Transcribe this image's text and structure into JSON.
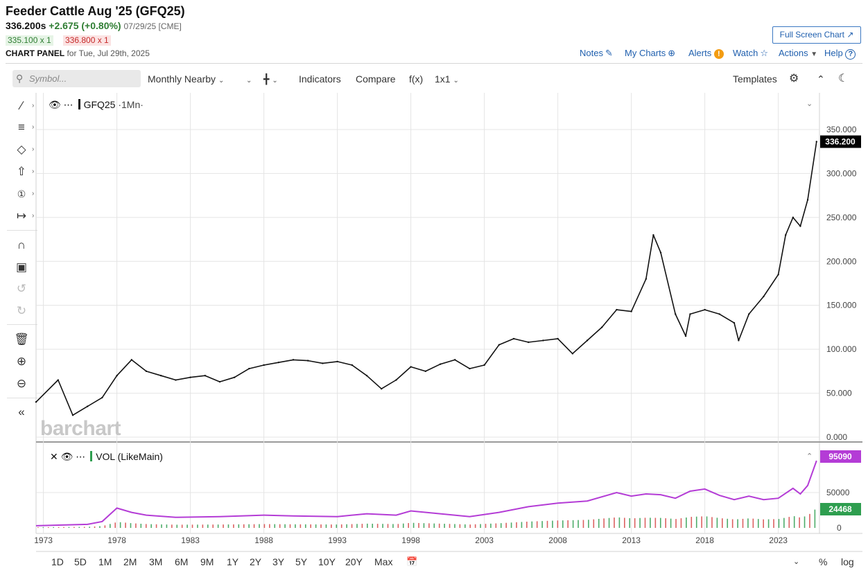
{
  "header": {
    "title": "Feeder Cattle Aug '25 (GFQ25)",
    "last": "336.200s",
    "change": "+2.675 (+0.80%)",
    "time": "07/29/25 [CME]",
    "bid": "335.100 x 1",
    "ask": "336.800 x 1",
    "panel_label": "CHART PANEL",
    "panel_date": "for Tue, Jul 29th, 2025"
  },
  "top_links": {
    "fullscreen": "Full Screen Chart",
    "notes": "Notes",
    "my_charts": "My Charts",
    "alerts": "Alerts",
    "watch": "Watch",
    "actions": "Actions",
    "help": "Help"
  },
  "toolbar": {
    "symbol_placeholder": "Symbol...",
    "period": "Monthly Nearby",
    "indicators": "Indicators",
    "compare": "Compare",
    "fx": "f(x)",
    "layout": "1x1",
    "templates": "Templates"
  },
  "legends": {
    "main": "GFQ25",
    "main_interval": "·1Mn·",
    "vol": "VOL (LikeMain)"
  },
  "watermark": "barchart",
  "colors": {
    "price": "#111111",
    "vol_line": "#b43cd6",
    "up_bar": "#2e9e4f",
    "down_bar": "#d64545",
    "grid": "#e4e4e4",
    "last_tag": "#000000",
    "vol_tag": "#b43cd6",
    "vol_bar_tag": "#2e9e4f"
  },
  "chart_data": {
    "type": "line",
    "price_axis": {
      "ticks": [
        "350.000",
        "300.000",
        "250.000",
        "200.000",
        "150.000",
        "100.000",
        "50.000",
        "0.000"
      ],
      "range": [
        0,
        350
      ]
    },
    "last_price_label": "336.200",
    "x_labels": [
      "1973",
      "1978",
      "1983",
      "1988",
      "1993",
      "1998",
      "2003",
      "2008",
      "2013",
      "2018",
      "2023"
    ],
    "price_series": {
      "x": [
        1972.5,
        1974,
        1975,
        1976,
        1977,
        1978,
        1979,
        1980,
        1981,
        1982,
        1983,
        1984,
        1985,
        1986,
        1987,
        1988,
        1989,
        1990,
        1991,
        1992,
        1993,
        1994,
        1995,
        1996,
        1997,
        1998,
        1999,
        2000,
        2001,
        2002,
        2003,
        2004,
        2005,
        2006,
        2007,
        2008,
        2009,
        2010,
        2011,
        2012,
        2013,
        2014,
        2014.5,
        2015,
        2016,
        2016.7,
        2017,
        2018,
        2019,
        2020,
        2020.3,
        2021,
        2022,
        2023,
        2023.5,
        2024,
        2024.5,
        2025,
        2025.6
      ],
      "y": [
        40,
        65,
        25,
        35,
        45,
        70,
        88,
        75,
        70,
        65,
        68,
        70,
        63,
        68,
        78,
        82,
        85,
        88,
        87,
        84,
        86,
        82,
        70,
        55,
        65,
        80,
        75,
        83,
        88,
        78,
        82,
        105,
        112,
        108,
        110,
        112,
        95,
        110,
        125,
        145,
        143,
        180,
        230,
        210,
        140,
        115,
        140,
        145,
        140,
        130,
        110,
        140,
        160,
        185,
        230,
        250,
        240,
        270,
        336.2
      ]
    },
    "volume_axis": {
      "ticks": [
        "50000",
        "0"
      ],
      "range": [
        0,
        95090
      ]
    },
    "volume_last_label": "95090",
    "volume_bar_label": "24468",
    "volume_series": {
      "name": "VOL (LikeMain)",
      "x": [
        1972.5,
        1976,
        1977,
        1978,
        1979,
        1980,
        1982,
        1985,
        1988,
        1990,
        1993,
        1995,
        1997,
        1998,
        2000,
        2002,
        2004,
        2006,
        2008,
        2010,
        2012,
        2013,
        2014,
        2015,
        2016,
        2017,
        2018,
        2019,
        2020,
        2021,
        2022,
        2023,
        2024,
        2024.5,
        2025,
        2025.6
      ],
      "y": [
        3000,
        5000,
        9000,
        28000,
        22000,
        18000,
        15000,
        16000,
        18000,
        17000,
        16000,
        20000,
        18000,
        24000,
        20000,
        16000,
        22000,
        30000,
        35000,
        38000,
        50000,
        45000,
        48000,
        47000,
        42000,
        52000,
        55000,
        46000,
        40000,
        45000,
        40000,
        42000,
        56000,
        48000,
        60000,
        95090
      ]
    }
  },
  "bottom": {
    "timeframes": [
      "1D",
      "5D",
      "1M",
      "2M",
      "3M",
      "6M",
      "9M",
      "1Y",
      "2Y",
      "3Y",
      "5Y",
      "10Y",
      "20Y",
      "Max"
    ],
    "pct": "%",
    "log": "log"
  }
}
